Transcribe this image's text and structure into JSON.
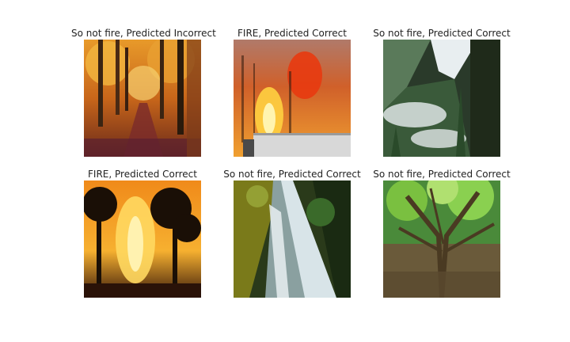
{
  "panels": [
    {
      "caption": "So not fire, Predicted Incorrect",
      "scene": "autumn-forest-path"
    },
    {
      "caption": "FIRE, Predicted Correct",
      "scene": "forest-fire-truck"
    },
    {
      "caption": "So not fire, Predicted Correct",
      "scene": "misty-mountain-forest"
    },
    {
      "caption": "FIRE, Predicted Correct",
      "scene": "forest-fire-silhouettes"
    },
    {
      "caption": "So not fire, Predicted Correct",
      "scene": "waterfall"
    },
    {
      "caption": "So not fire, Predicted Correct",
      "scene": "tree-canopy"
    }
  ]
}
